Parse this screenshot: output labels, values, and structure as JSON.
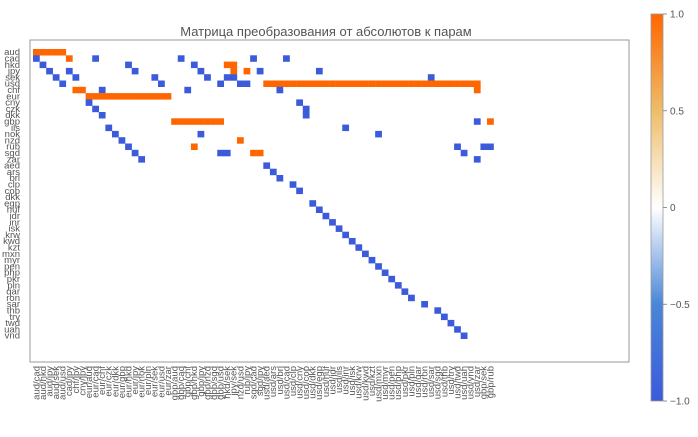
{
  "chart_data": {
    "type": "heatmap",
    "title": "Матрица преобразования от абсолютов к парам",
    "rows": [
      "aud",
      "cad",
      "hkd",
      "jpy",
      "sek",
      "usd",
      "chf",
      "eur",
      "cny",
      "czk",
      "dkk",
      "gbp",
      "ils",
      "nok",
      "nzd",
      "rub",
      "sgd",
      "zar",
      "aed",
      "ars",
      "brl",
      "clp",
      "cop",
      "dkk",
      "egp",
      "huf",
      "idr",
      "inr",
      "isk",
      "krw",
      "kwd",
      "kzt",
      "mxn",
      "myr",
      "pen",
      "php",
      "pkr",
      "pln",
      "qar",
      "ron",
      "sar",
      "thb",
      "try",
      "twd",
      "uah",
      "vnd"
    ],
    "columns": [
      "aud/cad",
      "aud/hkd",
      "aud/jpy",
      "aud/sek",
      "aud/usd",
      "cad/jpy",
      "chf/jpy",
      "cny/jpy",
      "eur/aud",
      "eur/cad",
      "eur/chf",
      "eur/czk",
      "eur/dkk",
      "eur/gbp",
      "eur/hkd",
      "eur/jpy",
      "eur/nok",
      "eur/pln",
      "eur/sek",
      "eur/usd",
      "eur/zar",
      "gbp/aud",
      "gbp/cad",
      "gbp/chf",
      "gbp/hkd",
      "gbp/jpy",
      "gbp/nzd",
      "gbp/sgd",
      "gbp/usd",
      "hkd/sek",
      "jpy/sek",
      "nzd/usd",
      "rub/jpy",
      "sgd/cad",
      "sgd/jpy",
      "usd/aed",
      "usd/ars",
      "usd/brl",
      "usd/cad",
      "usd/clp",
      "usd/cny",
      "usd/cop",
      "usd/dkk",
      "usd/egp",
      "usd/huf",
      "usd/idr",
      "usd/ils",
      "usd/inr",
      "usd/isk",
      "usd/krw",
      "usd/kwd",
      "usd/kzt",
      "usd/mxn",
      "usd/myr",
      "usd/pen",
      "usd/php",
      "usd/pkr",
      "usd/pln",
      "usd/qar",
      "usd/ron",
      "usd/sar",
      "usd/sgd",
      "usd/thb",
      "usd/try",
      "usd/twd",
      "usd/uah",
      "usd/vnd",
      "usd/zar",
      "gbp/sek",
      "gbp/rub"
    ],
    "cells": [
      {
        "row": "aud",
        "col": "aud/cad",
        "value": 1
      },
      {
        "row": "aud",
        "col": "aud/hkd",
        "value": 1
      },
      {
        "row": "aud",
        "col": "aud/jpy",
        "value": 1
      },
      {
        "row": "aud",
        "col": "aud/sek",
        "value": 1
      },
      {
        "row": "aud",
        "col": "aud/usd",
        "value": 1
      },
      {
        "row": "cad",
        "col": "aud/cad",
        "value": -1
      },
      {
        "row": "cad",
        "col": "cad/jpy",
        "value": 1
      },
      {
        "row": "cad",
        "col": "eur/cad",
        "value": -1
      },
      {
        "row": "cad",
        "col": "gbp/cad",
        "value": -1
      },
      {
        "row": "cad",
        "col": "sgd/cad",
        "value": -1
      },
      {
        "row": "cad",
        "col": "usd/cad",
        "value": -1
      },
      {
        "row": "hkd",
        "col": "aud/hkd",
        "value": -1
      },
      {
        "row": "hkd",
        "col": "eur/hkd",
        "value": -1
      },
      {
        "row": "hkd",
        "col": "gbp/hkd",
        "value": -1
      },
      {
        "row": "hkd",
        "col": "hkd/sek",
        "value": 1
      },
      {
        "row": "hkd",
        "col": "jpy/sek",
        "value": 1
      },
      {
        "row": "jpy",
        "col": "aud/jpy",
        "value": -1
      },
      {
        "row": "jpy",
        "col": "cad/jpy",
        "value": -1
      },
      {
        "row": "jpy",
        "col": "eur/jpy",
        "value": -1
      },
      {
        "row": "jpy",
        "col": "gbp/jpy",
        "value": -1
      },
      {
        "row": "jpy",
        "col": "jpy/sek",
        "value": 1
      },
      {
        "row": "jpy",
        "col": "rub/jpy",
        "value": 1
      },
      {
        "row": "jpy",
        "col": "sgd/jpy",
        "value": -1
      },
      {
        "row": "jpy",
        "col": "usd/egp",
        "value": -1
      },
      {
        "row": "sek",
        "col": "aud/sek",
        "value": -1
      },
      {
        "row": "sek",
        "col": "chf/jpy",
        "value": -1
      },
      {
        "row": "sek",
        "col": "eur/sek",
        "value": -1
      },
      {
        "row": "sek",
        "col": "gbp/nzd",
        "value": -1
      },
      {
        "row": "sek",
        "col": "hkd/sek",
        "value": -1
      },
      {
        "row": "sek",
        "col": "jpy/sek",
        "value": -1
      },
      {
        "row": "sek",
        "col": "usd/sar",
        "value": -1
      },
      {
        "row": "usd",
        "col": "aud/usd",
        "value": -1
      },
      {
        "row": "usd",
        "col": "eur/usd",
        "value": -1
      },
      {
        "row": "usd",
        "col": "gbp/usd",
        "value": -1
      },
      {
        "row": "usd",
        "col": "nzd/usd",
        "value": -1
      },
      {
        "row": "usd",
        "col": "rub/jpy",
        "value": -1
      },
      {
        "row": "usd",
        "col": "usd/aed",
        "value": 1
      },
      {
        "row": "usd",
        "col": "usd/ars",
        "value": 1
      },
      {
        "row": "usd",
        "col": "usd/brl",
        "value": 1
      },
      {
        "row": "usd",
        "col": "usd/cad",
        "value": 1
      },
      {
        "row": "usd",
        "col": "usd/clp",
        "value": 1
      },
      {
        "row": "usd",
        "col": "usd/cny",
        "value": 1
      },
      {
        "row": "usd",
        "col": "usd/cop",
        "value": 1
      },
      {
        "row": "usd",
        "col": "usd/dkk",
        "value": 1
      },
      {
        "row": "usd",
        "col": "usd/egp",
        "value": 1
      },
      {
        "row": "usd",
        "col": "usd/huf",
        "value": 1
      },
      {
        "row": "usd",
        "col": "usd/idr",
        "value": 1
      },
      {
        "row": "usd",
        "col": "usd/ils",
        "value": 1
      },
      {
        "row": "usd",
        "col": "usd/inr",
        "value": 1
      },
      {
        "row": "usd",
        "col": "usd/isk",
        "value": 1
      },
      {
        "row": "usd",
        "col": "usd/krw",
        "value": 1
      },
      {
        "row": "usd",
        "col": "usd/kwd",
        "value": 1
      },
      {
        "row": "usd",
        "col": "usd/kzt",
        "value": 1
      },
      {
        "row": "usd",
        "col": "usd/mxn",
        "value": 1
      },
      {
        "row": "usd",
        "col": "usd/myr",
        "value": 1
      },
      {
        "row": "usd",
        "col": "usd/pen",
        "value": 1
      },
      {
        "row": "usd",
        "col": "usd/php",
        "value": 1
      },
      {
        "row": "usd",
        "col": "usd/pkr",
        "value": 1
      },
      {
        "row": "usd",
        "col": "usd/pln",
        "value": 1
      },
      {
        "row": "usd",
        "col": "usd/qar",
        "value": 1
      },
      {
        "row": "usd",
        "col": "usd/ron",
        "value": 1
      },
      {
        "row": "usd",
        "col": "usd/sar",
        "value": 1
      },
      {
        "row": "usd",
        "col": "usd/sgd",
        "value": 1
      },
      {
        "row": "usd",
        "col": "usd/thb",
        "value": 1
      },
      {
        "row": "usd",
        "col": "usd/try",
        "value": 1
      },
      {
        "row": "usd",
        "col": "usd/twd",
        "value": 1
      },
      {
        "row": "usd",
        "col": "usd/uah",
        "value": 1
      },
      {
        "row": "usd",
        "col": "usd/vnd",
        "value": 1
      },
      {
        "row": "usd",
        "col": "usd/zar",
        "value": 1
      },
      {
        "row": "chf",
        "col": "chf/jpy",
        "value": 1
      },
      {
        "row": "chf",
        "col": "cny/jpy",
        "value": 1
      },
      {
        "row": "chf",
        "col": "eur/chf",
        "value": -1
      },
      {
        "row": "chf",
        "col": "gbp/chf",
        "value": -1
      },
      {
        "row": "chf",
        "col": "usd/brl",
        "value": -1
      },
      {
        "row": "chf",
        "col": "usd/zar",
        "value": 1
      },
      {
        "row": "eur",
        "col": "eur/aud",
        "value": 1
      },
      {
        "row": "eur",
        "col": "eur/cad",
        "value": 1
      },
      {
        "row": "eur",
        "col": "eur/chf",
        "value": 1
      },
      {
        "row": "eur",
        "col": "eur/czk",
        "value": 1
      },
      {
        "row": "eur",
        "col": "eur/dkk",
        "value": 1
      },
      {
        "row": "eur",
        "col": "eur/gbp",
        "value": 1
      },
      {
        "row": "eur",
        "col": "eur/hkd",
        "value": 1
      },
      {
        "row": "eur",
        "col": "eur/jpy",
        "value": 1
      },
      {
        "row": "eur",
        "col": "eur/nok",
        "value": 1
      },
      {
        "row": "eur",
        "col": "eur/pln",
        "value": 1
      },
      {
        "row": "eur",
        "col": "eur/sek",
        "value": 1
      },
      {
        "row": "eur",
        "col": "eur/usd",
        "value": 1
      },
      {
        "row": "eur",
        "col": "eur/zar",
        "value": 1
      },
      {
        "row": "cny",
        "col": "eur/aud",
        "value": -1
      },
      {
        "row": "cny",
        "col": "usd/cny",
        "value": -1
      },
      {
        "row": "czk",
        "col": "eur/cad",
        "value": -1
      },
      {
        "row": "czk",
        "col": "usd/cop",
        "value": -1
      },
      {
        "row": "dkk",
        "col": "eur/chf",
        "value": -1
      },
      {
        "row": "gbp",
        "col": "gbp/aud",
        "value": 1
      },
      {
        "row": "gbp",
        "col": "gbp/cad",
        "value": 1
      },
      {
        "row": "gbp",
        "col": "gbp/chf",
        "value": 1
      },
      {
        "row": "gbp",
        "col": "gbp/hkd",
        "value": 1
      },
      {
        "row": "gbp",
        "col": "gbp/jpy",
        "value": 1
      },
      {
        "row": "gbp",
        "col": "gbp/nzd",
        "value": 1
      },
      {
        "row": "gbp",
        "col": "gbp/sgd",
        "value": 1
      },
      {
        "row": "gbp",
        "col": "gbp/usd",
        "value": 1
      },
      {
        "row": "gbp",
        "col": "usd/zar",
        "value": -1
      },
      {
        "row": "gbp",
        "col": "gbp/rub",
        "value": 1
      },
      {
        "row": "ils",
        "col": "eur/czk",
        "value": -1
      },
      {
        "row": "ils",
        "col": "usd/inr",
        "value": -1
      },
      {
        "row": "nok",
        "col": "eur/dkk",
        "value": -1
      },
      {
        "row": "nok",
        "col": "gbp/jpy",
        "value": -1
      },
      {
        "row": "nok",
        "col": "usd/mxn",
        "value": -1
      },
      {
        "row": "nzd",
        "col": "eur/gbp",
        "value": -1
      },
      {
        "row": "nzd",
        "col": "nzd/usd",
        "value": 1
      },
      {
        "row": "rub",
        "col": "eur/hkd",
        "value": -1
      },
      {
        "row": "rub",
        "col": "gbp/hkd",
        "value": 1
      },
      {
        "row": "rub",
        "col": "usd/twd",
        "value": -1
      },
      {
        "row": "rub",
        "col": "gbp/sek",
        "value": -1
      },
      {
        "row": "rub",
        "col": "gbp/rub",
        "value": -1
      },
      {
        "row": "sgd",
        "col": "eur/jpy",
        "value": -1
      },
      {
        "row": "sgd",
        "col": "gbp/usd",
        "value": -1
      },
      {
        "row": "sgd",
        "col": "hkd/sek",
        "value": -1
      },
      {
        "row": "sgd",
        "col": "sgd/cad",
        "value": 1
      },
      {
        "row": "sgd",
        "col": "sgd/jpy",
        "value": 1
      },
      {
        "row": "sgd",
        "col": "usd/uah",
        "value": -1
      },
      {
        "row": "zar",
        "col": "eur/nok",
        "value": -1
      },
      {
        "row": "zar",
        "col": "usd/zar",
        "value": -1
      },
      {
        "row": "aed",
        "col": "usd/aed",
        "value": -1
      },
      {
        "row": "ars",
        "col": "usd/ars",
        "value": -1
      },
      {
        "row": "brl",
        "col": "usd/brl",
        "value": -1
      },
      {
        "row": "clp",
        "col": "usd/clp",
        "value": -1
      },
      {
        "row": "cop",
        "col": "usd/cny",
        "value": -1
      },
      {
        "row": "dkk",
        "col": "usd/cop",
        "value": -1
      },
      {
        "row": "egp",
        "col": "usd/dkk",
        "value": -1
      },
      {
        "row": "huf",
        "col": "usd/egp",
        "value": -1
      },
      {
        "row": "idr",
        "col": "usd/huf",
        "value": -1
      },
      {
        "row": "inr",
        "col": "usd/idr",
        "value": -1
      },
      {
        "row": "isk",
        "col": "usd/ils",
        "value": -1
      },
      {
        "row": "krw",
        "col": "usd/inr",
        "value": -1
      },
      {
        "row": "kwd",
        "col": "usd/isk",
        "value": -1
      },
      {
        "row": "kzt",
        "col": "usd/krw",
        "value": -1
      },
      {
        "row": "mxn",
        "col": "usd/kwd",
        "value": -1
      },
      {
        "row": "myr",
        "col": "usd/kzt",
        "value": -1
      },
      {
        "row": "pen",
        "col": "usd/mxn",
        "value": -1
      },
      {
        "row": "php",
        "col": "usd/myr",
        "value": -1
      },
      {
        "row": "pkr",
        "col": "usd/pen",
        "value": -1
      },
      {
        "row": "pln",
        "col": "usd/php",
        "value": -1
      },
      {
        "row": "qar",
        "col": "usd/pkr",
        "value": -1
      },
      {
        "row": "ron",
        "col": "usd/pln",
        "value": -1
      },
      {
        "row": "sar",
        "col": "usd/ron",
        "value": -1
      },
      {
        "row": "thb",
        "col": "usd/sgd",
        "value": -1
      },
      {
        "row": "try",
        "col": "usd/thb",
        "value": -1
      },
      {
        "row": "twd",
        "col": "usd/try",
        "value": -1
      },
      {
        "row": "uah",
        "col": "usd/twd",
        "value": -1
      },
      {
        "row": "vnd",
        "col": "usd/uah",
        "value": -1
      }
    ],
    "colorbar": {
      "min": -1.0,
      "max": 1.0,
      "ticks": [
        -1.0,
        -0.5,
        0,
        0.5,
        1.0
      ],
      "tick_labels": [
        "−1.0",
        "−0.5",
        "0",
        "0.5",
        "1.0"
      ],
      "colors": [
        "#3b5bdb",
        "#ffffff",
        "#ff6600"
      ]
    },
    "xlabel": "",
    "ylabel": "",
    "grid": false
  }
}
